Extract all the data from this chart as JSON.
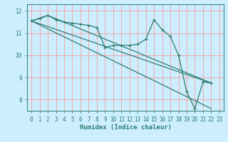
{
  "xlabel": "Humidex (Indice chaleur)",
  "bg_color": "#cceeff",
  "line_color": "#2e7d6e",
  "grid_color": "#f5a0a0",
  "xlim": [
    -0.5,
    23.5
  ],
  "ylim": [
    7.5,
    12.3
  ],
  "yticks": [
    8,
    9,
    10,
    11,
    12
  ],
  "xticks": [
    0,
    1,
    2,
    3,
    4,
    5,
    6,
    7,
    8,
    9,
    10,
    11,
    12,
    13,
    14,
    15,
    16,
    17,
    18,
    19,
    20,
    21,
    22,
    23
  ],
  "series": {
    "main": {
      "x": [
        0,
        1,
        2,
        3,
        4,
        5,
        6,
        7,
        8,
        9,
        10,
        11,
        12,
        13,
        14,
        15,
        16,
        17,
        18,
        19,
        20,
        21,
        22
      ],
      "y": [
        11.55,
        11.65,
        11.8,
        11.6,
        11.5,
        11.45,
        11.4,
        11.35,
        11.25,
        10.35,
        10.45,
        10.45,
        10.45,
        10.5,
        10.72,
        11.6,
        11.15,
        10.85,
        10.0,
        8.35,
        7.6,
        8.8,
        8.75
      ]
    },
    "upper_env": {
      "x": [
        0,
        2,
        22
      ],
      "y": [
        11.55,
        11.8,
        8.75
      ]
    },
    "lower_env": {
      "x": [
        0,
        22
      ],
      "y": [
        11.55,
        7.6
      ]
    },
    "mid_line": {
      "x": [
        0,
        22
      ],
      "y": [
        11.55,
        8.75
      ]
    }
  }
}
